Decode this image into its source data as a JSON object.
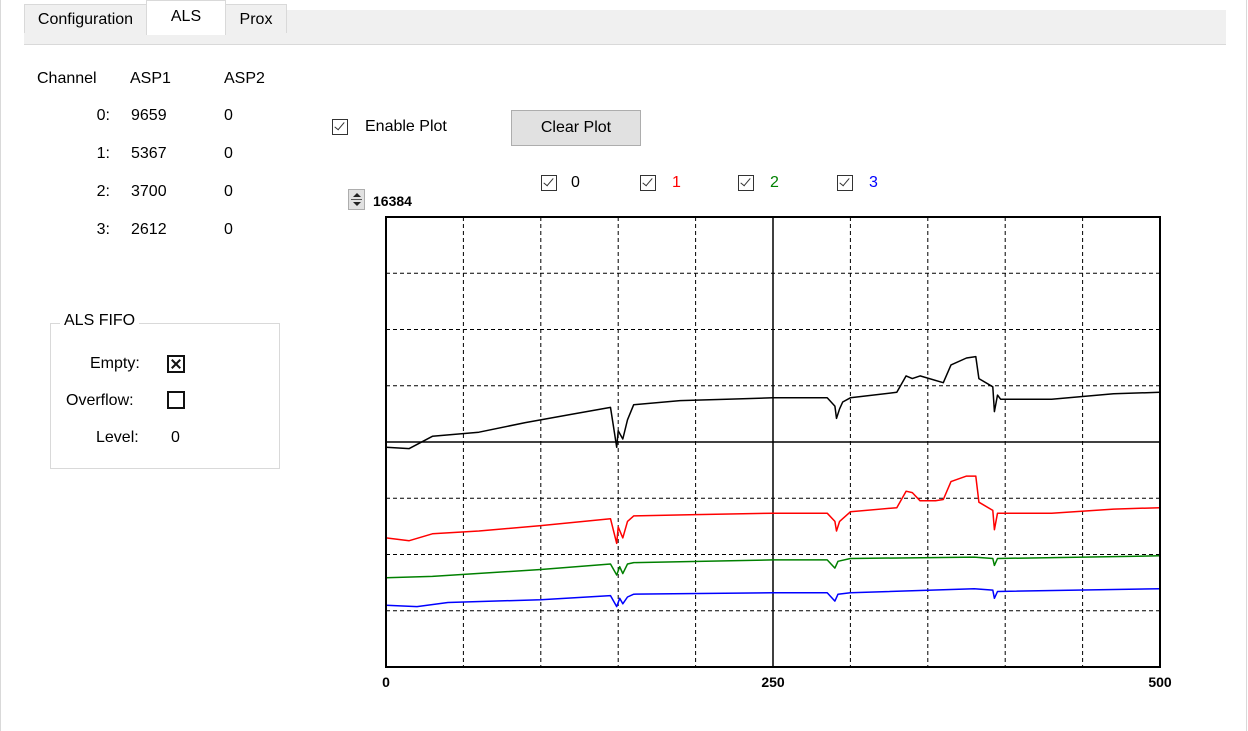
{
  "tabs": [
    {
      "label": "Configuration",
      "active": false
    },
    {
      "label": "ALS",
      "active": true
    },
    {
      "label": "Prox",
      "active": false
    }
  ],
  "channel_table": {
    "headers": [
      "Channel",
      "ASP1",
      "ASP2"
    ],
    "rows": [
      {
        "channel": "0:",
        "asp1": "9659",
        "asp2": "0"
      },
      {
        "channel": "1:",
        "asp1": "5367",
        "asp2": "0"
      },
      {
        "channel": "2:",
        "asp1": "3700",
        "asp2": "0"
      },
      {
        "channel": "3:",
        "asp1": "2612",
        "asp2": "0"
      }
    ]
  },
  "fifo": {
    "title": "ALS FIFO",
    "empty_label": "Empty:",
    "empty_checked": true,
    "overflow_label": "Overflow:",
    "overflow_checked": false,
    "level_label": "Level:",
    "level_value": "0"
  },
  "plot_controls": {
    "enable_plot_label": "Enable Plot",
    "enable_plot_checked": true,
    "clear_plot_label": "Clear Plot",
    "y_max_value": "16384",
    "channel_toggles": [
      {
        "label": "0",
        "checked": true,
        "color": "#000000"
      },
      {
        "label": "1",
        "checked": true,
        "color": "#ff0000"
      },
      {
        "label": "2",
        "checked": true,
        "color": "#008000"
      },
      {
        "label": "3",
        "checked": true,
        "color": "#0000ff"
      }
    ]
  },
  "chart_data": {
    "type": "line",
    "title": "",
    "xlabel": "",
    "ylabel": "",
    "xlim": [
      0,
      500
    ],
    "ylim": [
      0,
      16384
    ],
    "x_tick_labels": [
      "0",
      "250",
      "500"
    ],
    "grid": true,
    "series": [
      {
        "name": "0",
        "color": "#000000",
        "points": [
          [
            0,
            8000
          ],
          [
            15,
            7950
          ],
          [
            30,
            8400
          ],
          [
            60,
            8550
          ],
          [
            90,
            8900
          ],
          [
            120,
            9200
          ],
          [
            145,
            9450
          ],
          [
            149,
            8000
          ],
          [
            150,
            8600
          ],
          [
            153,
            8300
          ],
          [
            156,
            9000
          ],
          [
            160,
            9550
          ],
          [
            190,
            9700
          ],
          [
            220,
            9750
          ],
          [
            250,
            9800
          ],
          [
            285,
            9800
          ],
          [
            290,
            9500
          ],
          [
            291,
            9050
          ],
          [
            293,
            9400
          ],
          [
            295,
            9650
          ],
          [
            300,
            9800
          ],
          [
            330,
            10000
          ],
          [
            336,
            10600
          ],
          [
            340,
            10500
          ],
          [
            345,
            10600
          ],
          [
            360,
            10350
          ],
          [
            365,
            11000
          ],
          [
            375,
            11250
          ],
          [
            381,
            11300
          ],
          [
            383,
            10500
          ],
          [
            392,
            10200
          ],
          [
            393,
            9300
          ],
          [
            395,
            9900
          ],
          [
            397,
            9750
          ],
          [
            430,
            9750
          ],
          [
            450,
            9850
          ],
          [
            470,
            9950
          ],
          [
            500,
            10000
          ]
        ]
      },
      {
        "name": "1",
        "color": "#ff0000",
        "points": [
          [
            0,
            4700
          ],
          [
            15,
            4600
          ],
          [
            30,
            4850
          ],
          [
            60,
            4950
          ],
          [
            100,
            5150
          ],
          [
            145,
            5400
          ],
          [
            149,
            4500
          ],
          [
            150,
            5100
          ],
          [
            153,
            4700
          ],
          [
            156,
            5300
          ],
          [
            160,
            5500
          ],
          [
            200,
            5550
          ],
          [
            250,
            5600
          ],
          [
            285,
            5600
          ],
          [
            290,
            5300
          ],
          [
            291,
            4950
          ],
          [
            293,
            5300
          ],
          [
            300,
            5650
          ],
          [
            330,
            5800
          ],
          [
            336,
            6400
          ],
          [
            340,
            6350
          ],
          [
            345,
            6050
          ],
          [
            355,
            6050
          ],
          [
            360,
            6100
          ],
          [
            365,
            6750
          ],
          [
            375,
            6950
          ],
          [
            381,
            6950
          ],
          [
            383,
            6000
          ],
          [
            392,
            5700
          ],
          [
            393,
            5000
          ],
          [
            395,
            5600
          ],
          [
            430,
            5600
          ],
          [
            470,
            5750
          ],
          [
            500,
            5800
          ]
        ]
      },
      {
        "name": "2",
        "color": "#008000",
        "points": [
          [
            0,
            3250
          ],
          [
            30,
            3300
          ],
          [
            100,
            3550
          ],
          [
            145,
            3750
          ],
          [
            149,
            3350
          ],
          [
            151,
            3650
          ],
          [
            153,
            3400
          ],
          [
            156,
            3750
          ],
          [
            160,
            3800
          ],
          [
            250,
            3900
          ],
          [
            285,
            3900
          ],
          [
            290,
            3600
          ],
          [
            292,
            3850
          ],
          [
            300,
            3950
          ],
          [
            380,
            4000
          ],
          [
            392,
            3950
          ],
          [
            393,
            3700
          ],
          [
            395,
            3950
          ],
          [
            500,
            4050
          ]
        ]
      },
      {
        "name": "3",
        "color": "#0000ff",
        "points": [
          [
            0,
            2250
          ],
          [
            20,
            2200
          ],
          [
            40,
            2350
          ],
          [
            100,
            2450
          ],
          [
            145,
            2600
          ],
          [
            149,
            2200
          ],
          [
            151,
            2500
          ],
          [
            153,
            2300
          ],
          [
            156,
            2550
          ],
          [
            160,
            2650
          ],
          [
            250,
            2700
          ],
          [
            285,
            2700
          ],
          [
            290,
            2400
          ],
          [
            292,
            2650
          ],
          [
            300,
            2700
          ],
          [
            380,
            2850
          ],
          [
            392,
            2800
          ],
          [
            393,
            2500
          ],
          [
            395,
            2750
          ],
          [
            500,
            2850
          ]
        ]
      }
    ]
  }
}
